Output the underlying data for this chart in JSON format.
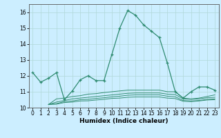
{
  "x": [
    0,
    1,
    2,
    3,
    4,
    5,
    6,
    7,
    8,
    9,
    10,
    11,
    12,
    13,
    14,
    15,
    16,
    17,
    18,
    19,
    20,
    21,
    22,
    23
  ],
  "line_main": [
    12.2,
    11.6,
    11.85,
    12.2,
    10.5,
    11.05,
    11.75,
    12.0,
    11.7,
    11.7,
    13.35,
    15.0,
    16.1,
    15.8,
    15.2,
    14.8,
    14.4,
    12.8,
    11.0,
    10.6,
    11.0,
    11.3,
    11.3,
    11.1
  ],
  "line_flat1": [
    null,
    null,
    10.2,
    10.55,
    10.6,
    10.7,
    10.75,
    10.85,
    10.88,
    10.95,
    11.0,
    11.05,
    11.1,
    11.1,
    11.1,
    11.1,
    11.1,
    11.0,
    11.0,
    10.6,
    10.55,
    10.6,
    10.7,
    10.8
  ],
  "line_flat2": [
    null,
    null,
    10.2,
    10.35,
    10.45,
    10.55,
    10.6,
    10.65,
    10.7,
    10.75,
    10.8,
    10.85,
    10.9,
    10.92,
    10.92,
    10.92,
    10.92,
    10.85,
    10.82,
    10.55,
    10.52,
    10.55,
    10.62,
    10.65
  ],
  "line_flat3": [
    null,
    null,
    10.2,
    10.25,
    10.38,
    10.42,
    10.5,
    10.52,
    10.58,
    10.62,
    10.68,
    10.72,
    10.78,
    10.8,
    10.8,
    10.8,
    10.8,
    10.72,
    10.68,
    10.45,
    10.42,
    10.45,
    10.52,
    10.55
  ],
  "line_flat4": [
    null,
    null,
    10.2,
    10.22,
    10.32,
    10.35,
    10.42,
    10.43,
    10.48,
    10.52,
    10.58,
    10.6,
    10.65,
    10.67,
    10.67,
    10.67,
    10.67,
    10.6,
    10.57,
    10.4,
    10.38,
    10.42,
    10.48,
    10.5
  ],
  "color": "#2e8b70",
  "bg_color": "#cceeff",
  "grid_color": "#b0d8d8",
  "ylim": [
    10.0,
    16.5
  ],
  "yticks": [
    10,
    11,
    12,
    13,
    14,
    15,
    16
  ],
  "xlabel": "Humidex (Indice chaleur)",
  "marker": "+",
  "markersize": 3.5,
  "linewidth": 0.9,
  "fontsize_label": 6.5,
  "fontsize_tick": 5.5
}
